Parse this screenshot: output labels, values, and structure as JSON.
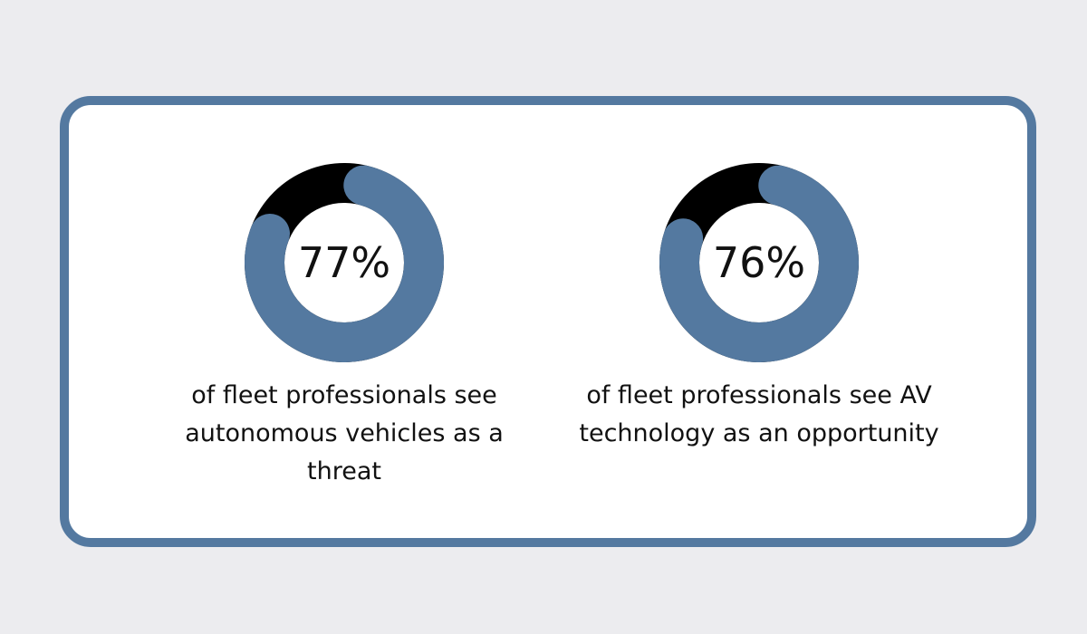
{
  "chart_data": [
    {
      "type": "pie",
      "value": 77,
      "label": "77%",
      "caption": "of fleet professionals see autonomous vehicles as a threat",
      "colors": {
        "fill": "#5479a0",
        "track": "#000000"
      }
    },
    {
      "type": "pie",
      "value": 76,
      "label": "76%",
      "caption": "of fleet professionals see AV technology as an opportunity",
      "colors": {
        "fill": "#5479a0",
        "track": "#000000"
      }
    }
  ]
}
